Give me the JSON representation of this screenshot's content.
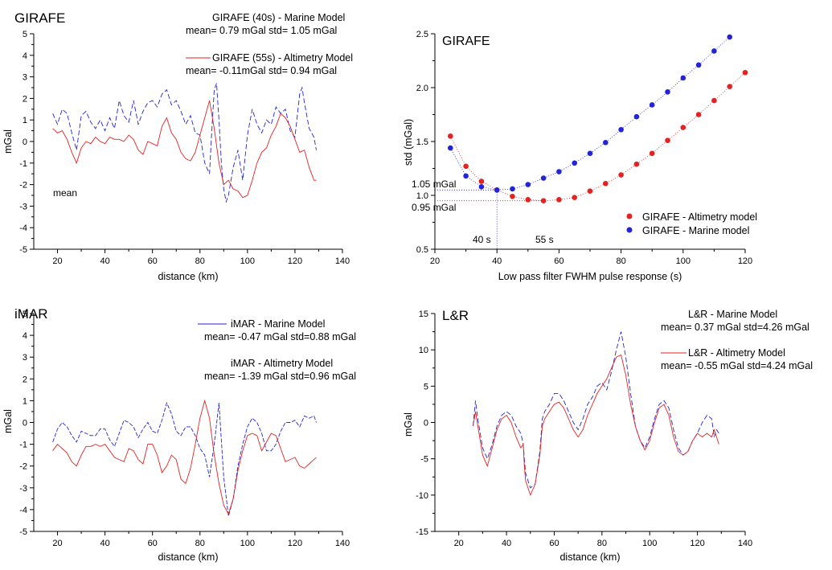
{
  "colors": {
    "marine": "#2323d8",
    "altimetry": "#e42222",
    "axis": "#000000"
  },
  "chart_data": [
    {
      "type": "line",
      "panel_title": "GIRAFE",
      "xlabel": "distance (km)",
      "ylabel": "mGal",
      "xlim": [
        10,
        140
      ],
      "ylim": [
        -5,
        5
      ],
      "xticks": [
        20,
        40,
        60,
        80,
        100,
        120,
        140
      ],
      "yticks": [
        -5,
        -4,
        -3,
        -2,
        -1,
        0,
        1,
        2,
        3,
        4,
        5
      ],
      "annotation": "mean",
      "legend": [
        {
          "name": "GIRAFE (40s) - Marine Model",
          "stats": "mean= 0.79 mGal  std= 1.05 mGal",
          "color": "marine"
        },
        {
          "name": "GIRAFE (55s) - Altimetry Model",
          "stats": "mean= -0.11mGal  std= 0.94 mGal",
          "color": "altimetry"
        }
      ],
      "series": [
        {
          "name": "GIRAFE (40s) - Marine Model",
          "color": "marine",
          "dash": "6,3",
          "x": [
            18,
            20,
            22,
            24,
            26,
            28,
            30,
            32,
            34,
            36,
            38,
            40,
            42,
            44,
            46,
            48,
            50,
            52,
            54,
            56,
            58,
            60,
            62,
            64,
            66,
            68,
            70,
            72,
            74,
            76,
            78,
            80,
            82,
            84,
            85,
            86,
            87,
            88,
            89,
            90,
            91,
            92,
            94,
            96,
            98,
            100,
            102,
            104,
            106,
            108,
            110,
            112,
            114,
            116,
            118,
            120,
            122,
            123,
            124,
            126,
            128,
            129
          ],
          "y": [
            1.3,
            0.8,
            1.5,
            1.3,
            0.4,
            -0.4,
            1.2,
            1.4,
            0.9,
            0.6,
            1.0,
            0.5,
            1.1,
            0.6,
            1.9,
            1.2,
            0.9,
            1.9,
            0.8,
            1.4,
            1.8,
            1.9,
            1.6,
            2.2,
            2.4,
            1.7,
            1.9,
            1.4,
            0.8,
            1.2,
            0.4,
            0.3,
            -1.0,
            -1.5,
            0.5,
            2.4,
            2.7,
            1.0,
            -1.0,
            -2.2,
            -2.8,
            -2.5,
            -1.2,
            -0.4,
            -1.8,
            0.3,
            1.5,
            0.8,
            0.4,
            1.0,
            0.8,
            1.6,
            1.3,
            1.5,
            0.5,
            0.2,
            2.2,
            2.5,
            1.8,
            0.6,
            0.2,
            -0.4
          ]
        },
        {
          "name": "GIRAFE (55s) - Altimetry Model",
          "color": "altimetry",
          "dash": "",
          "x": [
            18,
            20,
            22,
            24,
            26,
            28,
            30,
            32,
            34,
            36,
            38,
            40,
            42,
            44,
            46,
            48,
            50,
            52,
            54,
            56,
            58,
            60,
            62,
            64,
            66,
            68,
            70,
            72,
            74,
            76,
            78,
            80,
            82,
            84,
            86,
            88,
            90,
            92,
            94,
            96,
            98,
            100,
            102,
            104,
            106,
            108,
            110,
            112,
            114,
            116,
            118,
            120,
            122,
            124,
            126,
            128,
            129
          ],
          "y": [
            0.6,
            0.4,
            0.5,
            0.1,
            -0.5,
            -1.0,
            -0.3,
            0.0,
            -0.1,
            0.2,
            0.0,
            -0.1,
            0.2,
            0.1,
            0.1,
            0.0,
            0.3,
            0.1,
            -0.4,
            -0.6,
            0.0,
            -0.1,
            -0.2,
            0.7,
            1.1,
            0.4,
            0.1,
            -0.5,
            -0.8,
            -0.9,
            -0.5,
            0.3,
            1.1,
            1.9,
            0.6,
            -1.0,
            -2.0,
            -1.8,
            -2.2,
            -2.3,
            -2.6,
            -2.5,
            -1.8,
            -1.0,
            -0.5,
            -0.3,
            0.3,
            0.7,
            1.3,
            1.1,
            0.7,
            0.1,
            -0.5,
            -0.4,
            -1.2,
            -1.8,
            -1.8
          ]
        }
      ]
    },
    {
      "type": "scatter",
      "panel_title": "GIRAFE",
      "xlabel": "Low pass filter FWHM pulse response (s)",
      "ylabel": "std (mGal)",
      "xlim": [
        20,
        120
      ],
      "ylim": [
        0.5,
        2.5
      ],
      "xticks": [
        20,
        40,
        60,
        80,
        100,
        120
      ],
      "yticks": [
        0.5,
        1.0,
        1.5,
        2.0,
        2.5
      ],
      "ytick_labels": [
        "0.5",
        "1.0",
        "1.5",
        "2.0",
        "2.5"
      ],
      "legend": [
        {
          "name": "GIRAFE - Altimetry model",
          "color": "altimetry"
        },
        {
          "name": "GIRAFE - Marine model",
          "color": "marine"
        }
      ],
      "annotations": {
        "marine_std": "1.05 mGal",
        "altimetry_std": "0.95 mGal",
        "marine_t": "40 s",
        "altimetry_t": "55 s"
      },
      "markers": {
        "marine": {
          "x": 40,
          "y": 1.05
        },
        "altimetry": {
          "x": 55,
          "y": 0.95
        }
      },
      "series": [
        {
          "name": "GIRAFE - Altimetry model",
          "color": "altimetry",
          "x": [
            25,
            30,
            35,
            40,
            45,
            50,
            55,
            60,
            65,
            70,
            75,
            80,
            85,
            90,
            95,
            100,
            105,
            110,
            115,
            120
          ],
          "y": [
            1.55,
            1.27,
            1.13,
            1.05,
            0.99,
            0.96,
            0.95,
            0.96,
            0.98,
            1.04,
            1.11,
            1.19,
            1.29,
            1.39,
            1.51,
            1.63,
            1.75,
            1.88,
            2.01,
            2.14
          ]
        },
        {
          "name": "GIRAFE - Marine model",
          "color": "marine",
          "x": [
            25,
            30,
            35,
            40,
            45,
            50,
            55,
            60,
            65,
            70,
            75,
            80,
            85,
            90,
            95,
            100,
            105,
            110,
            115
          ],
          "y": [
            1.44,
            1.18,
            1.08,
            1.05,
            1.06,
            1.1,
            1.16,
            1.22,
            1.3,
            1.39,
            1.49,
            1.61,
            1.73,
            1.84,
            1.96,
            2.09,
            2.21,
            2.34,
            2.47
          ]
        }
      ]
    },
    {
      "type": "line",
      "panel_title": "iMAR",
      "xlabel": "distance (km)",
      "ylabel": "mGal",
      "xlim": [
        10,
        140
      ],
      "ylim": [
        -5,
        5
      ],
      "xticks": [
        20,
        40,
        60,
        80,
        100,
        120,
        140
      ],
      "yticks": [
        -5,
        -4,
        -3,
        -2,
        -1,
        0,
        1,
        2,
        3,
        4,
        5
      ],
      "legend": [
        {
          "name": "iMAR - Marine Model",
          "stats": "mean= -0.47 mGal  std=0.88 mGal",
          "color": "marine"
        },
        {
          "name": "iMAR - Altimetry Model",
          "stats": "mean= -1.39 mGal  std=0.96 mGal",
          "color": "altimetry"
        }
      ],
      "series": [
        {
          "name": "iMAR - Marine Model",
          "color": "marine",
          "dash": "5,2",
          "x": [
            18,
            20,
            22,
            24,
            26,
            28,
            30,
            32,
            34,
            36,
            38,
            40,
            42,
            44,
            46,
            48,
            50,
            52,
            54,
            56,
            58,
            60,
            62,
            64,
            66,
            68,
            70,
            72,
            74,
            76,
            78,
            80,
            82,
            84,
            86,
            88,
            90,
            92,
            94,
            96,
            98,
            100,
            102,
            104,
            106,
            108,
            110,
            112,
            114,
            116,
            118,
            120,
            122,
            124,
            126,
            128,
            129
          ],
          "y": [
            -0.9,
            -0.3,
            0.0,
            -0.2,
            -0.6,
            -0.9,
            -0.4,
            -0.5,
            -0.6,
            -0.6,
            -0.3,
            -0.3,
            -0.8,
            -1.1,
            -0.5,
            0.1,
            0.0,
            -0.2,
            -0.7,
            -0.3,
            0.0,
            -0.4,
            -0.5,
            0.1,
            0.9,
            0.4,
            -0.4,
            -0.6,
            -0.2,
            -0.2,
            -0.6,
            -1.2,
            -1.5,
            -2.5,
            -1.0,
            0.9,
            -2.5,
            -4.3,
            -3.5,
            -2.0,
            -1.0,
            -0.2,
            0.2,
            0.0,
            -0.5,
            -1.3,
            -1.3,
            -1.0,
            -0.4,
            0.0,
            0.0,
            0.1,
            -0.2,
            0.3,
            0.2,
            0.3,
            0.0
          ]
        },
        {
          "name": "iMAR - Altimetry Model",
          "color": "altimetry",
          "dash": "",
          "x": [
            18,
            20,
            22,
            24,
            26,
            28,
            30,
            32,
            34,
            36,
            38,
            40,
            42,
            44,
            46,
            48,
            50,
            52,
            54,
            56,
            58,
            60,
            62,
            64,
            66,
            68,
            70,
            72,
            74,
            76,
            78,
            80,
            82,
            84,
            86,
            88,
            90,
            92,
            94,
            96,
            98,
            100,
            102,
            104,
            106,
            108,
            110,
            112,
            114,
            116,
            118,
            120,
            122,
            124,
            126,
            128,
            129
          ],
          "y": [
            -1.3,
            -1.0,
            -1.2,
            -1.4,
            -1.8,
            -2.0,
            -1.5,
            -1.1,
            -1.1,
            -1.0,
            -1.1,
            -1.0,
            -1.3,
            -1.6,
            -1.7,
            -1.8,
            -1.2,
            -1.3,
            -1.7,
            -1.9,
            -1.0,
            -1.0,
            -1.5,
            -2.3,
            -2.0,
            -1.5,
            -1.7,
            -2.6,
            -2.8,
            -2.1,
            -1.0,
            0.2,
            1.0,
            0.2,
            -1.5,
            -2.8,
            -3.8,
            -4.2,
            -3.5,
            -2.2,
            -1.3,
            -0.6,
            -0.5,
            -0.6,
            -1.3,
            -0.9,
            -0.5,
            -0.6,
            -1.2,
            -1.8,
            -1.7,
            -1.6,
            -2.0,
            -2.1,
            -1.9,
            -1.7,
            -1.6
          ]
        }
      ]
    },
    {
      "type": "line",
      "panel_title": "L&R",
      "xlabel": "distance (km)",
      "ylabel": "mGal",
      "xlim": [
        10,
        140
      ],
      "ylim": [
        -15,
        15
      ],
      "xticks": [
        20,
        40,
        60,
        80,
        100,
        120,
        140
      ],
      "yticks": [
        -15,
        -10,
        -5,
        0,
        5,
        10,
        15
      ],
      "legend": [
        {
          "name": "L&R - Marine Model",
          "stats": "mean= 0.37 mGal  std=4.26 mGal",
          "color": "marine"
        },
        {
          "name": "L&R - Altimetry Model",
          "stats": "mean= -0.55 mGal  std=4.24 mGal",
          "color": "altimetry"
        }
      ],
      "series": [
        {
          "name": "L&R - Marine Model",
          "color": "marine",
          "dash": "6,3",
          "x": [
            26,
            27,
            28,
            30,
            32,
            34,
            36,
            38,
            40,
            42,
            44,
            46,
            47,
            47.5,
            48,
            50,
            52,
            54,
            55,
            56,
            58,
            60,
            62,
            64,
            66,
            68,
            70,
            72,
            74,
            76,
            78,
            80,
            82,
            84,
            86,
            88,
            90,
            92,
            94,
            96,
            98,
            100,
            102,
            104,
            106,
            108,
            110,
            112,
            114,
            116,
            118,
            120,
            122,
            124,
            126,
            127,
            128,
            129
          ],
          "y": [
            -0.5,
            3.0,
            0.5,
            -3.5,
            -5.0,
            -3.0,
            -0.5,
            1.0,
            1.5,
            1.0,
            -0.5,
            -1.5,
            -3.0,
            -5.0,
            -7.0,
            -9.0,
            -8.5,
            -4.0,
            0.5,
            1.5,
            2.5,
            4.0,
            4.0,
            3.0,
            1.5,
            0.0,
            -1.0,
            0.5,
            2.5,
            3.5,
            5.0,
            5.5,
            4.5,
            7.0,
            10.0,
            12.5,
            9.0,
            4.0,
            -0.5,
            -2.5,
            -3.5,
            -2.0,
            0.5,
            2.5,
            3.0,
            2.0,
            -1.0,
            -3.5,
            -4.5,
            -4.0,
            -2.5,
            -1.5,
            0.0,
            1.0,
            0.5,
            -2.0,
            -1.0,
            -1.5
          ]
        },
        {
          "name": "L&R - Altimetry Model",
          "color": "altimetry",
          "dash": "",
          "x": [
            26,
            27,
            28,
            30,
            32,
            34,
            36,
            38,
            40,
            42,
            44,
            46,
            47,
            47.5,
            48,
            50,
            52,
            54,
            55,
            56,
            58,
            60,
            62,
            64,
            66,
            68,
            70,
            72,
            74,
            76,
            78,
            80,
            82,
            84,
            86,
            88,
            90,
            92,
            94,
            96,
            98,
            100,
            102,
            104,
            106,
            108,
            110,
            112,
            114,
            116,
            118,
            120,
            122,
            124,
            126,
            127,
            128,
            129
          ],
          "y": [
            -0.5,
            1.5,
            -0.5,
            -4.5,
            -6.0,
            -3.5,
            -1.0,
            0.5,
            1.0,
            0.0,
            -2.0,
            -3.5,
            -3.0,
            -6.0,
            -8.0,
            -10.0,
            -8.5,
            -4.5,
            -0.5,
            0.5,
            1.5,
            2.5,
            2.8,
            2.0,
            0.5,
            -1.0,
            -2.0,
            -1.0,
            1.0,
            2.5,
            4.0,
            5.0,
            6.0,
            7.5,
            9.0,
            9.3,
            6.5,
            2.5,
            -0.5,
            -2.5,
            -3.8,
            -2.5,
            0.0,
            2.0,
            2.5,
            1.0,
            -2.0,
            -4.0,
            -4.5,
            -4.0,
            -2.5,
            -1.5,
            -2.0,
            -1.5,
            -2.0,
            -1.0,
            -2.0,
            -3.0
          ]
        }
      ]
    }
  ]
}
